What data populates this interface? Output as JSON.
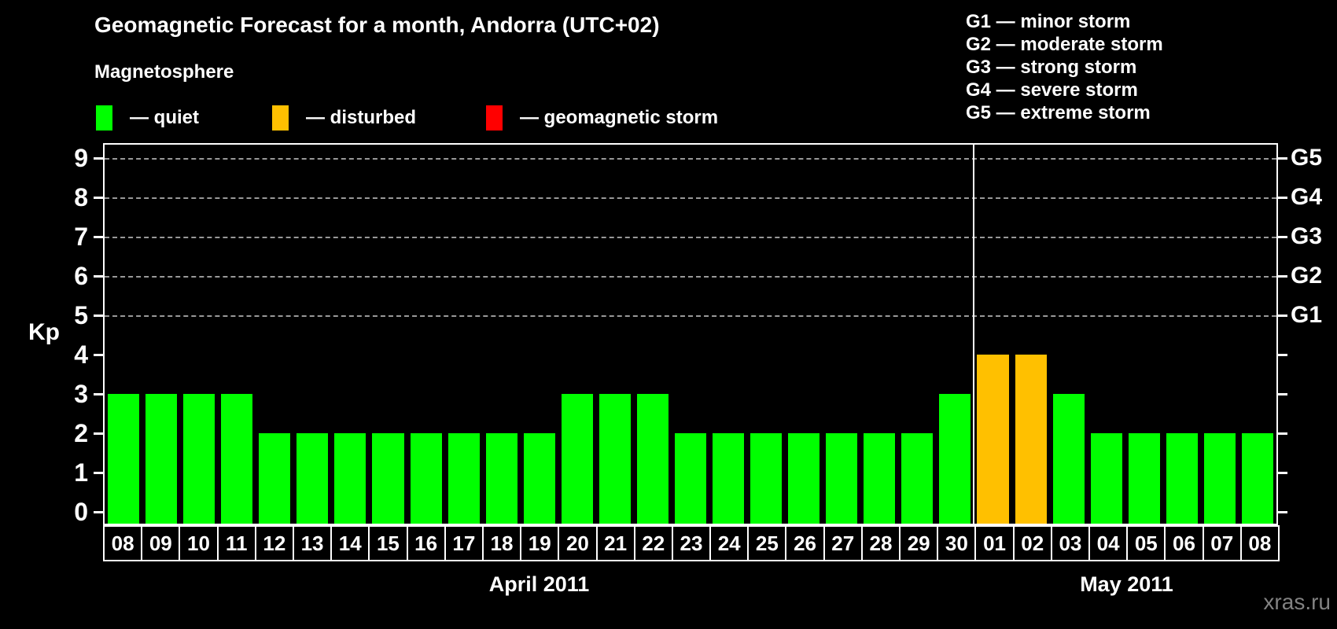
{
  "header": {
    "title": "Geomagnetic Forecast for a month, Andorra (UTC+02)",
    "subtitle": "Magnetosphere"
  },
  "legend": {
    "items": [
      {
        "name": "quiet",
        "label": "— quiet",
        "color": "#00ff00"
      },
      {
        "name": "disturbed",
        "label": "— disturbed",
        "color": "#ffc000"
      },
      {
        "name": "storm",
        "label": "— geomagnetic storm",
        "color": "#ff0000"
      }
    ]
  },
  "storm_scale_legend": [
    "G1 — minor storm",
    "G2 — moderate storm",
    "G3 — strong storm",
    "G4 — severe storm",
    "G5 — extreme storm"
  ],
  "watermark": "xras.ru",
  "chart_data": {
    "type": "bar",
    "title": "Geomagnetic Forecast for a month, Andorra (UTC+02)",
    "xlabel": "",
    "ylabel": "Kp",
    "ylim": [
      0,
      9.4
    ],
    "y_ticks": [
      0,
      1,
      2,
      3,
      4,
      5,
      6,
      7,
      8,
      9
    ],
    "grid_levels": [
      5,
      6,
      7,
      8,
      9
    ],
    "grid_style": "dashed gray horizontal lines at Kp 5-9 only",
    "legend_position": "top-left",
    "right_axis_labels": [
      {
        "text": "G1",
        "kp": 5
      },
      {
        "text": "G2",
        "kp": 6
      },
      {
        "text": "G3",
        "kp": 7
      },
      {
        "text": "G4",
        "kp": 8
      },
      {
        "text": "G5",
        "kp": 9
      }
    ],
    "months": [
      {
        "label": "April 2011",
        "days": 23
      },
      {
        "label": "May 2011",
        "days": 8
      }
    ],
    "status_colors": {
      "quiet": "#00ff00",
      "disturbed": "#ffc000",
      "storm": "#ff0000"
    },
    "bars": [
      {
        "month": "April 2011",
        "day": "08",
        "kp": 3,
        "status": "quiet"
      },
      {
        "month": "April 2011",
        "day": "09",
        "kp": 3,
        "status": "quiet"
      },
      {
        "month": "April 2011",
        "day": "10",
        "kp": 3,
        "status": "quiet"
      },
      {
        "month": "April 2011",
        "day": "11",
        "kp": 3,
        "status": "quiet"
      },
      {
        "month": "April 2011",
        "day": "12",
        "kp": 2,
        "status": "quiet"
      },
      {
        "month": "April 2011",
        "day": "13",
        "kp": 2,
        "status": "quiet"
      },
      {
        "month": "April 2011",
        "day": "14",
        "kp": 2,
        "status": "quiet"
      },
      {
        "month": "April 2011",
        "day": "15",
        "kp": 2,
        "status": "quiet"
      },
      {
        "month": "April 2011",
        "day": "16",
        "kp": 2,
        "status": "quiet"
      },
      {
        "month": "April 2011",
        "day": "17",
        "kp": 2,
        "status": "quiet"
      },
      {
        "month": "April 2011",
        "day": "18",
        "kp": 2,
        "status": "quiet"
      },
      {
        "month": "April 2011",
        "day": "19",
        "kp": 2,
        "status": "quiet"
      },
      {
        "month": "April 2011",
        "day": "20",
        "kp": 3,
        "status": "quiet"
      },
      {
        "month": "April 2011",
        "day": "21",
        "kp": 3,
        "status": "quiet"
      },
      {
        "month": "April 2011",
        "day": "22",
        "kp": 3,
        "status": "quiet"
      },
      {
        "month": "April 2011",
        "day": "23",
        "kp": 2,
        "status": "quiet"
      },
      {
        "month": "April 2011",
        "day": "24",
        "kp": 2,
        "status": "quiet"
      },
      {
        "month": "April 2011",
        "day": "25",
        "kp": 2,
        "status": "quiet"
      },
      {
        "month": "April 2011",
        "day": "26",
        "kp": 2,
        "status": "quiet"
      },
      {
        "month": "April 2011",
        "day": "27",
        "kp": 2,
        "status": "quiet"
      },
      {
        "month": "April 2011",
        "day": "28",
        "kp": 2,
        "status": "quiet"
      },
      {
        "month": "April 2011",
        "day": "29",
        "kp": 2,
        "status": "quiet"
      },
      {
        "month": "April 2011",
        "day": "30",
        "kp": 3,
        "status": "quiet"
      },
      {
        "month": "May 2011",
        "day": "01",
        "kp": 4,
        "status": "disturbed"
      },
      {
        "month": "May 2011",
        "day": "02",
        "kp": 4,
        "status": "disturbed"
      },
      {
        "month": "May 2011",
        "day": "03",
        "kp": 3,
        "status": "quiet"
      },
      {
        "month": "May 2011",
        "day": "04",
        "kp": 2,
        "status": "quiet"
      },
      {
        "month": "May 2011",
        "day": "05",
        "kp": 2,
        "status": "quiet"
      },
      {
        "month": "May 2011",
        "day": "06",
        "kp": 2,
        "status": "quiet"
      },
      {
        "month": "May 2011",
        "day": "07",
        "kp": 2,
        "status": "quiet"
      },
      {
        "month": "May 2011",
        "day": "08",
        "kp": 2,
        "status": "quiet"
      }
    ]
  }
}
